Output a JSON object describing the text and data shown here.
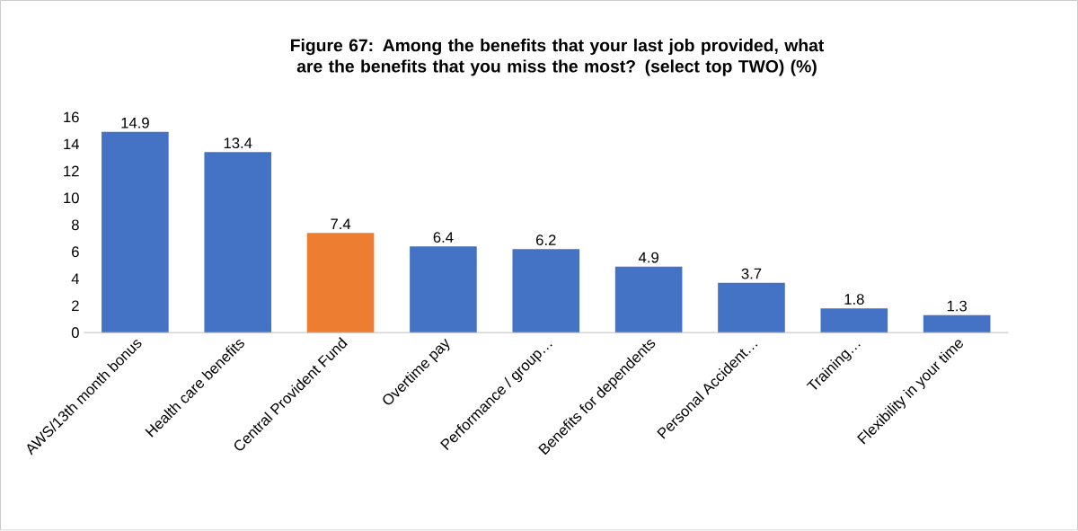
{
  "chart_data": {
    "type": "bar",
    "title": "Figure 67: Among the benefits that your last job provided, what are the benefits that you miss the most? (select top TWO) (%)",
    "categories": [
      "AWS/13th month bonus",
      "Health care benefits",
      "Central Provident Fund",
      "Overtime pay",
      "Performance / group…",
      "Benefits for dependents",
      "Personal Accident…",
      "Training…",
      "Flexibility in your time"
    ],
    "values": [
      14.9,
      13.4,
      7.4,
      6.4,
      6.2,
      4.9,
      3.7,
      1.8,
      1.3
    ],
    "colors": [
      "#4472c4",
      "#4472c4",
      "#ed7d31",
      "#4472c4",
      "#4472c4",
      "#4472c4",
      "#4472c4",
      "#4472c4",
      "#4472c4"
    ],
    "ylim": [
      0,
      16
    ],
    "yticks": [
      0,
      2,
      4,
      6,
      8,
      10,
      12,
      14,
      16
    ],
    "data_labels": true
  }
}
